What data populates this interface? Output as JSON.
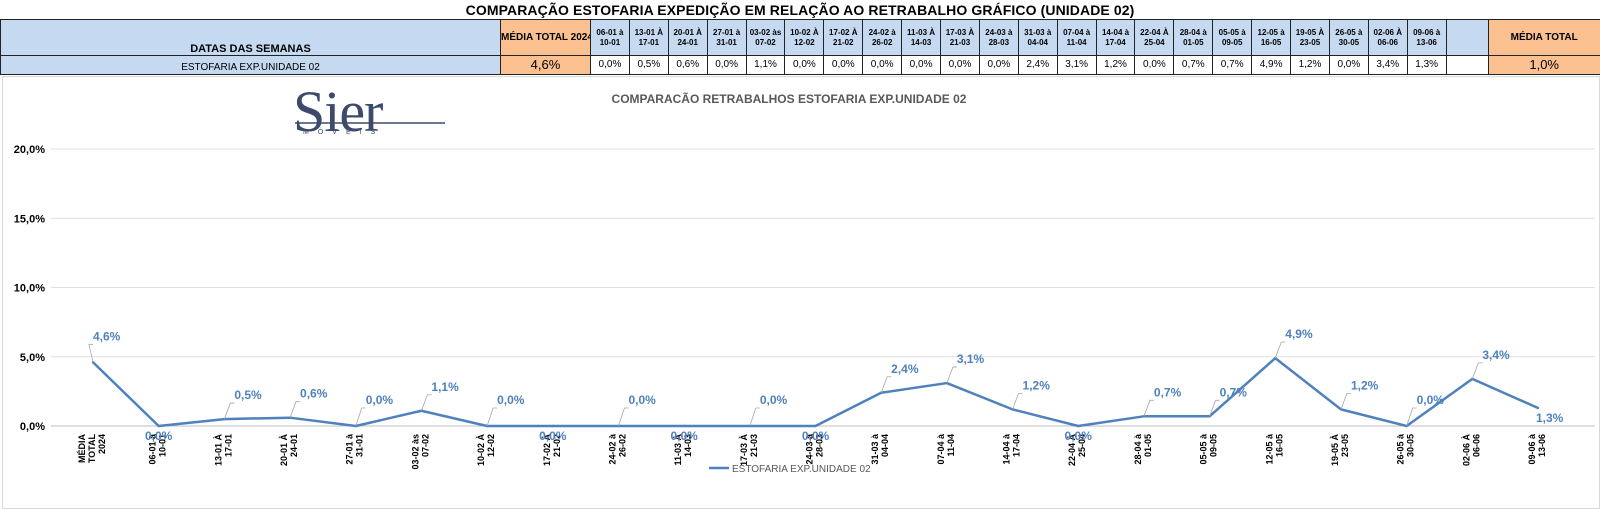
{
  "sheet_title": "COMPARAÇÃO ESTOFARIA EXPEDIÇÃO  EM RELAÇÃO AO RETRABALHO GRÁFICO (UNIDADE 02)",
  "table": {
    "header_label": "DATAS DAS SEMANAS",
    "media_header": "MÉDIA TOTAL 2024",
    "media_right_header": "MÉDIA TOTAL",
    "weeks": [
      "06-01 à 10-01",
      "13-01 À 17-01",
      "20-01 À 24-01",
      "27-01 à 31-01",
      "03-02 às 07-02",
      "10-02 À 12-02",
      "17-02 À 21-02",
      "24-02 à 26-02",
      "11-03 À 14-03",
      "17-03 À 21-03",
      "24-03 à 28-03",
      "31-03 à 04-04",
      "07-04 à 11-04",
      "14-04 à 17-04",
      "22-04 À 25-04",
      "28-04 à 01-05",
      "05-05 à 09-05",
      "12-05 à 16-05",
      "19-05 À 23-05",
      "26-05 à 30-05",
      "02-06 À 06-06",
      "09-06 à 13-06"
    ],
    "row_label": "ESTOFARIA EXP.UNIDADE 02",
    "media_value": "4,6%",
    "values": [
      "0,0%",
      "0,5%",
      "0,6%",
      "0,0%",
      "1,1%",
      "0,0%",
      "0,0%",
      "0,0%",
      "0,0%",
      "0,0%",
      "0,0%",
      "2,4%",
      "3,1%",
      "1,2%",
      "0,0%",
      "0,7%",
      "0,7%",
      "4,9%",
      "1,2%",
      "0,0%",
      "3,4%",
      "1,3%"
    ],
    "media_right_value": "1,0%"
  },
  "logo": {
    "text": "Sier",
    "sub": "MÓVEIS"
  },
  "chart_data": {
    "type": "line",
    "title": "COMPARACÃO RETRABALHOS  ESTOFARIA EXP.UNIDADE 02",
    "categories": [
      "MÉDIA TOTAL 2024",
      "06-01 à 10-01",
      "13-01 À 17-01",
      "20-01 À 24-01",
      "27-01 à 31-01",
      "03-02 às 07-02",
      "10-02 À 12-02",
      "17-02 À 21-02",
      "24-02 à 26-02",
      "11-03 À 14-03",
      "17-03 À 21-03",
      "24-03 à 28-03",
      "31-03 à 04-04",
      "07-04 à 11-04",
      "14-04 à 17-04",
      "22-04 À 25-04",
      "28-04 à 01-05",
      "05-05 à 09-05",
      "12-05 à 16-05",
      "19-05 À 23-05",
      "26-05 à 30-05",
      "02-06 À 06-06",
      "09-06 à 13-06"
    ],
    "series": [
      {
        "name": "ESTOFARIA EXP.UNIDADE 02",
        "values": [
          4.6,
          0.0,
          0.5,
          0.6,
          0.0,
          1.1,
          0.0,
          0.0,
          0.0,
          0.0,
          0.0,
          0.0,
          2.4,
          3.1,
          1.2,
          0.0,
          0.7,
          0.7,
          4.9,
          1.2,
          0.0,
          3.4,
          1.3
        ],
        "labels": [
          "4,6%",
          "0,0%",
          "0,5%",
          "0,6%",
          "0,0%",
          "1,1%",
          "0,0%",
          "0,0%",
          "0,0%",
          "0,0%",
          "0,0%",
          "0,0%",
          "2,4%",
          "3,1%",
          "1,2%",
          "0,0%",
          "0,7%",
          "0,7%",
          "4,9%",
          "1,2%",
          "0,0%",
          "3,4%",
          "1,3%"
        ],
        "color": "#4f81bd"
      }
    ],
    "y_ticks": [
      "0,0%",
      "5,0%",
      "10,0%",
      "15,0%",
      "20,0%"
    ],
    "ylim": [
      0,
      20
    ],
    "grid": true,
    "legend": "bottom"
  }
}
